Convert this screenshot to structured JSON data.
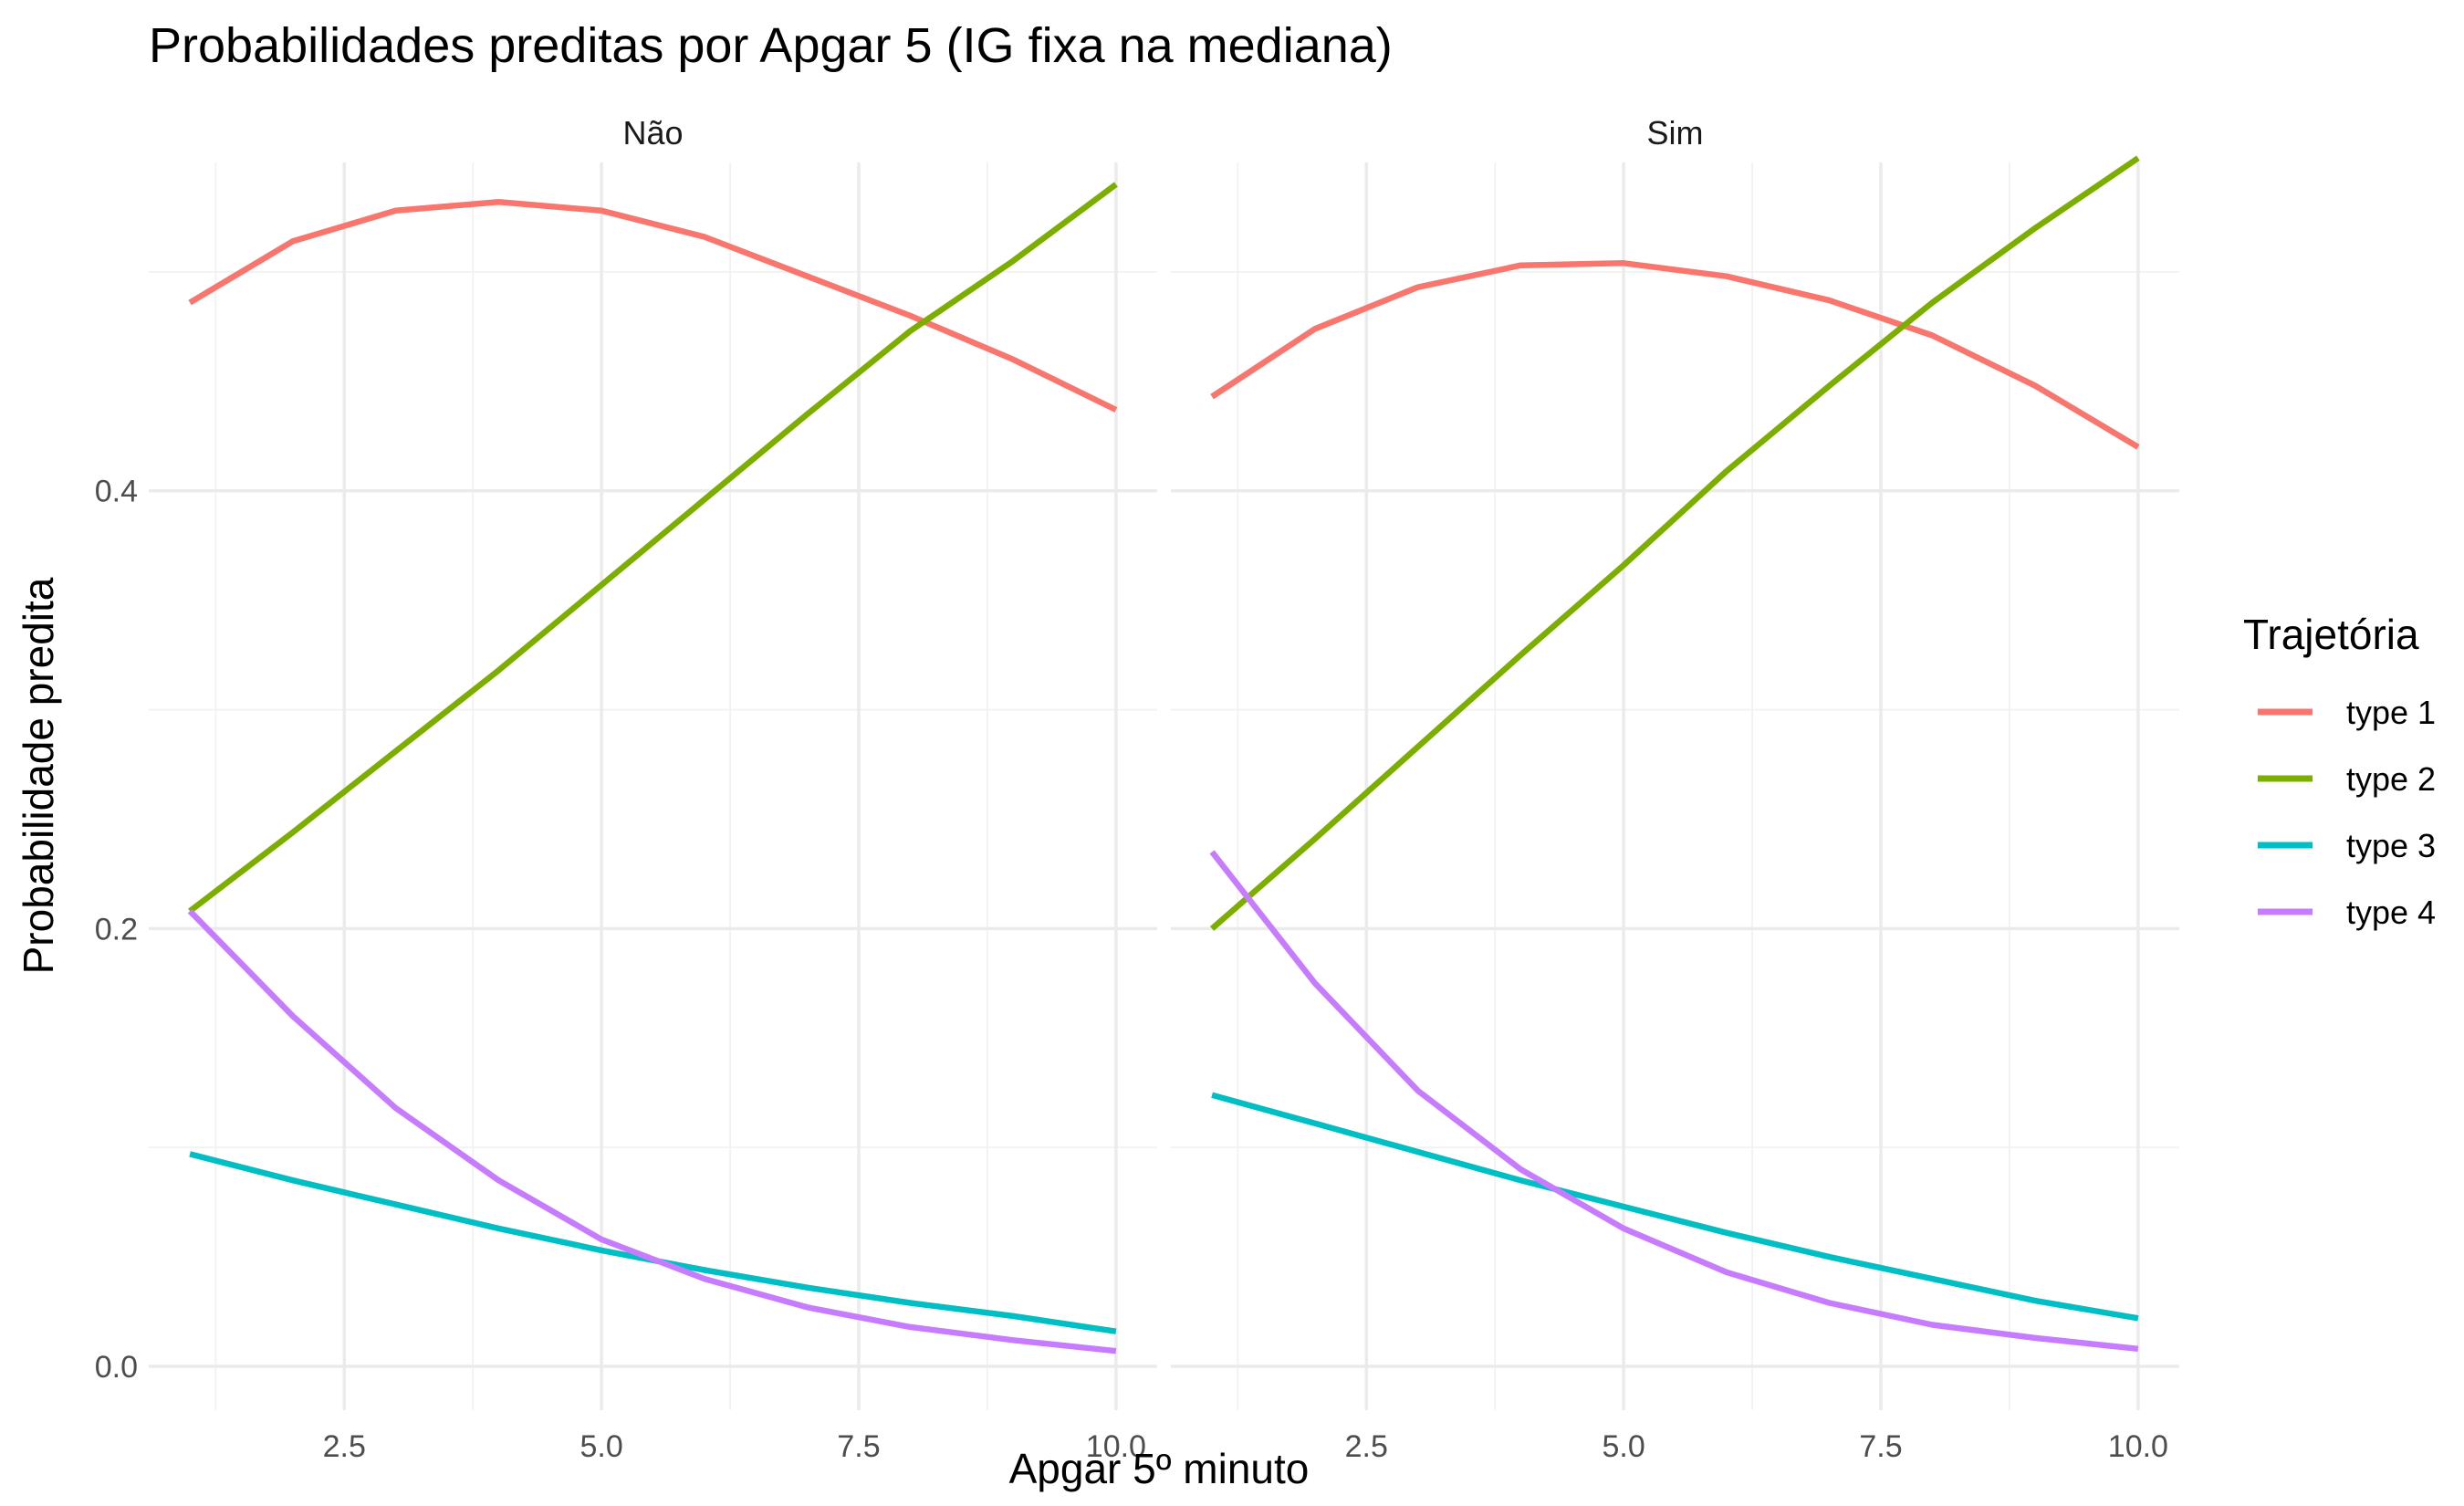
{
  "chart_data": {
    "type": "line",
    "title": "Probabilidades preditas por Apgar 5 (IG fixa na mediana)",
    "xlabel": "Apgar 5º minuto",
    "ylabel": "Probabilidade predita",
    "xlim": [
      0.6,
      10.4
    ],
    "ylim": [
      -0.02,
      0.55
    ],
    "x_ticks": [
      "2.5",
      "5.0",
      "7.5",
      "10.0"
    ],
    "y_ticks": [
      "0.0",
      "0.2",
      "0.4"
    ],
    "grid": true,
    "legend": {
      "title": "Trajetória",
      "position": "right",
      "entries": [
        {
          "label": "type 1",
          "color": "#F8766D"
        },
        {
          "label": "type 2",
          "color": "#7CAE00"
        },
        {
          "label": "type 3",
          "color": "#00BFC4"
        },
        {
          "label": "type 4",
          "color": "#C77CFF"
        }
      ]
    },
    "x": [
      1,
      2,
      3,
      4,
      5,
      6,
      7,
      8,
      9,
      10
    ],
    "panels": [
      {
        "name": "Não",
        "series": [
          {
            "name": "type 1",
            "color": "#F8766D",
            "values": [
              0.486,
              0.514,
              0.528,
              0.532,
              0.528,
              0.516,
              0.498,
              0.48,
              0.46,
              0.437
            ]
          },
          {
            "name": "type 2",
            "color": "#7CAE00",
            "values": [
              0.208,
              0.244,
              0.281,
              0.318,
              0.357,
              0.396,
              0.435,
              0.473,
              0.505,
              0.54
            ]
          },
          {
            "name": "type 3",
            "color": "#00BFC4",
            "values": [
              0.097,
              0.085,
              0.074,
              0.063,
              0.053,
              0.044,
              0.036,
              0.029,
              0.023,
              0.016
            ]
          },
          {
            "name": "type 4",
            "color": "#C77CFF",
            "values": [
              0.208,
              0.16,
              0.118,
              0.085,
              0.058,
              0.04,
              0.027,
              0.018,
              0.012,
              0.007
            ]
          }
        ]
      },
      {
        "name": "Sim",
        "series": [
          {
            "name": "type 1",
            "color": "#F8766D",
            "values": [
              0.443,
              0.474,
              0.493,
              0.503,
              0.504,
              0.498,
              0.487,
              0.471,
              0.448,
              0.42
            ]
          },
          {
            "name": "type 2",
            "color": "#7CAE00",
            "values": [
              0.2,
              0.241,
              0.283,
              0.325,
              0.366,
              0.409,
              0.448,
              0.486,
              0.52,
              0.552
            ]
          },
          {
            "name": "type 3",
            "color": "#00BFC4",
            "values": [
              0.124,
              0.111,
              0.098,
              0.085,
              0.073,
              0.061,
              0.05,
              0.04,
              0.03,
              0.022
            ]
          },
          {
            "name": "type 4",
            "color": "#C77CFF",
            "values": [
              0.235,
              0.175,
              0.126,
              0.09,
              0.063,
              0.043,
              0.029,
              0.019,
              0.013,
              0.008
            ]
          }
        ]
      }
    ]
  }
}
